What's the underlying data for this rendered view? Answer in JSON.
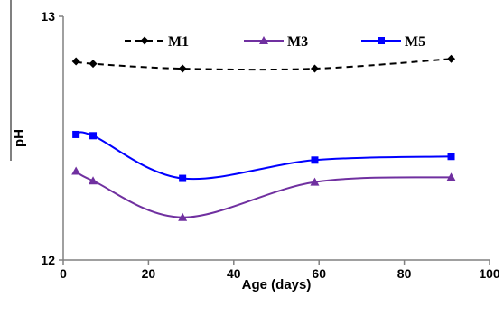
{
  "chart_data": {
    "type": "line",
    "xlabel": "Age (days)",
    "ylabel": "pH",
    "xlim": [
      0,
      100
    ],
    "ylim": [
      12,
      13
    ],
    "xticks": [
      "0",
      "20",
      "40",
      "60",
      "80",
      "100"
    ],
    "yticks": [
      "12",
      "13"
    ],
    "grid": false,
    "legend_position": "top",
    "series": [
      {
        "name": "M1",
        "color": "#000000",
        "line_style": "dashed",
        "marker": "diamond",
        "x": [
          3,
          7,
          28,
          59,
          91
        ],
        "y": [
          12.815,
          12.805,
          12.785,
          12.785,
          12.825
        ]
      },
      {
        "name": "M3",
        "color": "#7030A0",
        "line_style": "solid",
        "marker": "triangle",
        "x": [
          3,
          7,
          28,
          59,
          91
        ],
        "y": [
          12.365,
          12.325,
          12.175,
          12.32,
          12.34
        ]
      },
      {
        "name": "M5",
        "color": "#0000FF",
        "line_style": "solid",
        "marker": "square",
        "x": [
          3,
          7,
          28,
          59,
          91
        ],
        "y": [
          12.515,
          12.51,
          12.335,
          12.41,
          12.425
        ]
      }
    ]
  }
}
